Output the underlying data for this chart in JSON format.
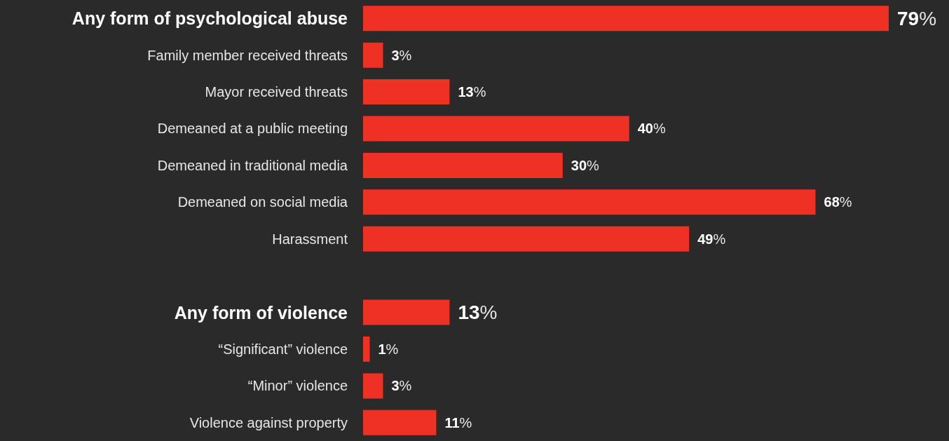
{
  "chart_data": {
    "type": "bar",
    "orientation": "horizontal",
    "categories": [
      "Any form of psychological abuse",
      "Family member received threats",
      "Mayor received threats",
      "Demeaned at a public meeting",
      "Demeaned in traditional media",
      "Demeaned on social media",
      "Harassment",
      null,
      "Any form of violence",
      "“Significant” violence",
      "“Minor” violence",
      "Violence against property"
    ],
    "values": [
      79,
      3,
      13,
      40,
      30,
      68,
      49,
      null,
      13,
      1,
      3,
      11
    ],
    "value_labels": [
      "79%",
      "3%",
      "13%",
      "40%",
      "30%",
      "68%",
      "49%",
      null,
      "13%",
      "1%",
      "3%",
      "11%"
    ],
    "color": "#ee3124"
  }
}
